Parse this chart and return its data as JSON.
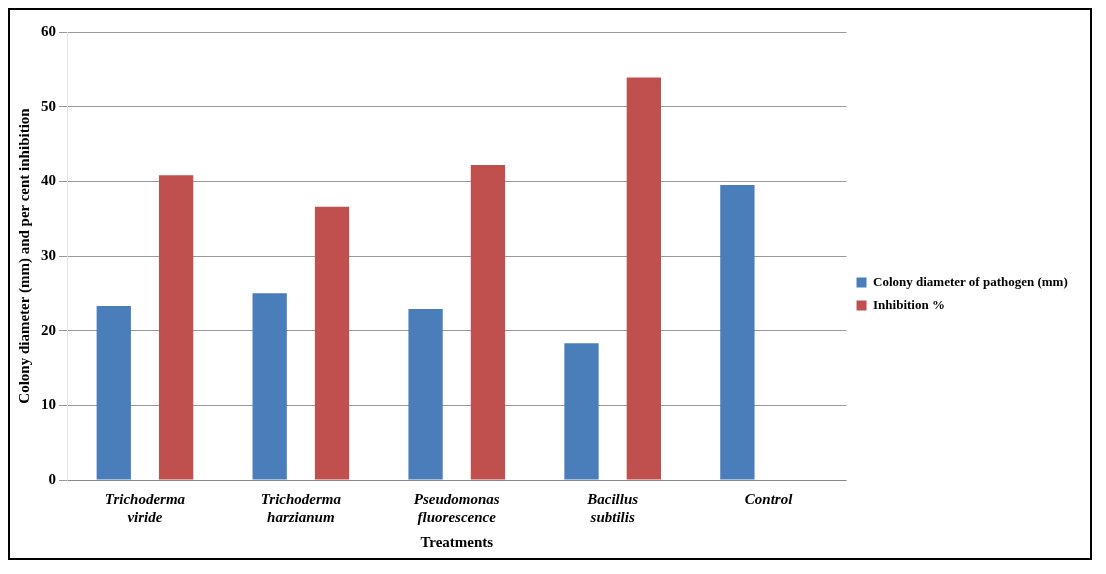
{
  "chart_data": {
    "type": "bar",
    "xlabel": "Treatments",
    "ylabel": "Colony diameter (mm) and per cent inhibition",
    "categories": [
      "Trichoderma viride",
      "Trichoderma harzianum",
      "Pseudomonas fluorescence",
      "Bacillus subtilis",
      "Control"
    ],
    "series": [
      {
        "name": "Colony diameter of pathogen (mm)",
        "color": "#4a7ebb",
        "values": [
          23.3,
          25,
          22.9,
          18.3,
          39.5
        ]
      },
      {
        "name": "Inhibition %",
        "color": "#c0504d",
        "values": [
          40.8,
          36.6,
          42.2,
          53.9,
          0
        ]
      }
    ],
    "ylim": [
      0,
      60
    ],
    "yticks": [
      0,
      10,
      20,
      30,
      40,
      50,
      60
    ],
    "grid": "y",
    "legend": "right"
  }
}
